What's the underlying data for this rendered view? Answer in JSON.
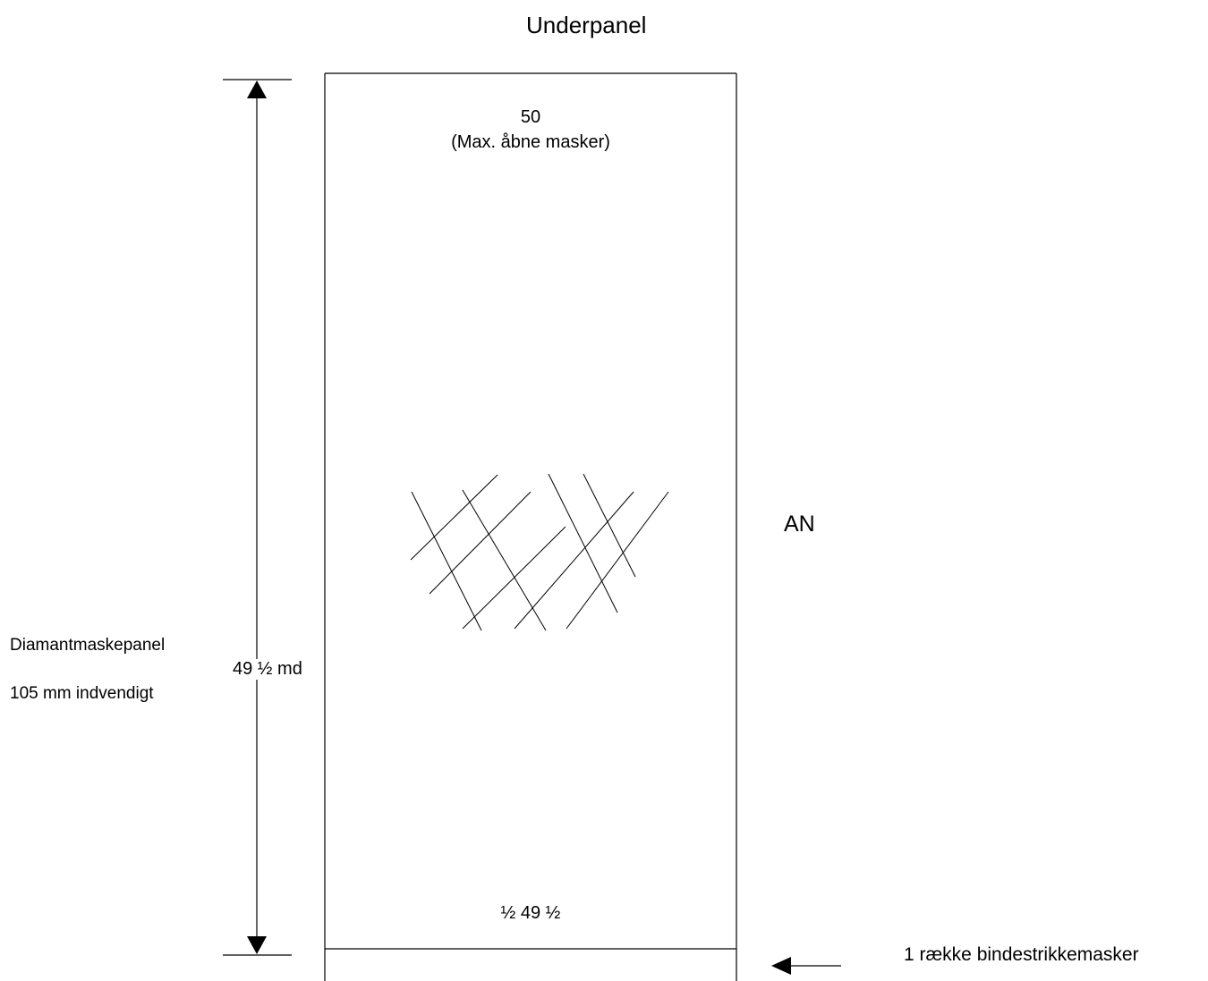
{
  "title": "Underpanel",
  "panel": {
    "top_count": "50",
    "top_note": "(Max. åbne masker)",
    "bottom_count": "½ 49 ½",
    "side_label": "AN"
  },
  "dimension": {
    "height_label": "49 ½ md"
  },
  "description": {
    "panel_name": "Diamantmaskepanel",
    "mesh_size": "105 mm indvendigt"
  },
  "bottom_row": {
    "label": "1 række bindestrikkemasker"
  }
}
